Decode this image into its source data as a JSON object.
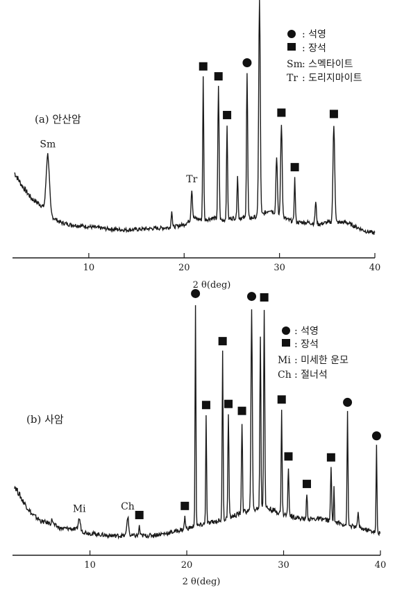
{
  "chart_data": [
    {
      "type": "line",
      "panel_label": "(a) 안산암",
      "xlabel": "2 θ(deg)",
      "xlim": [
        2,
        40
      ],
      "x_ticks": [
        10,
        20,
        30,
        40
      ],
      "y_axis_shown": false,
      "grid": false,
      "legend": {
        "placement": "top-right",
        "entries": [
          {
            "symbol": "circle",
            "label": ": 석영"
          },
          {
            "symbol": "square",
            "label": ": 장석"
          },
          {
            "symbol": "Sm",
            "label": ": 스멕타이트"
          },
          {
            "symbol": "Tr",
            "label": ": 도리지마이트"
          }
        ]
      },
      "baseline": [
        [
          2.2,
          0.33
        ],
        [
          3,
          0.27
        ],
        [
          4,
          0.21
        ],
        [
          5,
          0.18
        ],
        [
          6,
          0.13
        ],
        [
          7,
          0.1
        ],
        [
          8,
          0.09
        ],
        [
          10,
          0.08
        ],
        [
          12,
          0.07
        ],
        [
          14,
          0.065
        ],
        [
          16,
          0.07
        ],
        [
          18,
          0.075
        ],
        [
          19,
          0.08
        ],
        [
          20,
          0.09
        ],
        [
          21,
          0.12
        ],
        [
          22,
          0.11
        ],
        [
          23,
          0.12
        ],
        [
          24,
          0.11
        ],
        [
          25,
          0.12
        ],
        [
          26,
          0.12
        ],
        [
          27,
          0.12
        ],
        [
          28,
          0.13
        ],
        [
          29,
          0.16
        ],
        [
          30,
          0.13
        ],
        [
          31,
          0.11
        ],
        [
          32,
          0.1
        ],
        [
          33,
          0.1
        ],
        [
          34,
          0.09
        ],
        [
          35,
          0.1
        ],
        [
          36,
          0.1
        ],
        [
          37,
          0.1
        ],
        [
          38,
          0.08
        ],
        [
          39,
          0.06
        ],
        [
          40,
          0.05
        ]
      ],
      "peaks": [
        {
          "x": 5.7,
          "height": 0.27,
          "width": 0.45,
          "marker": "text",
          "label": "Sm"
        },
        {
          "x": 18.7,
          "height": 0.08,
          "width": 0.15,
          "marker": "none"
        },
        {
          "x": 20.8,
          "height": 0.14,
          "width": 0.2,
          "marker": "text",
          "label": "Tr"
        },
        {
          "x": 22.0,
          "height": 0.66,
          "width": 0.15,
          "marker": "square"
        },
        {
          "x": 23.6,
          "height": 0.61,
          "width": 0.18,
          "marker": "square"
        },
        {
          "x": 24.5,
          "height": 0.43,
          "width": 0.15,
          "marker": "square"
        },
        {
          "x": 25.6,
          "height": 0.2,
          "width": 0.15,
          "marker": "none"
        },
        {
          "x": 26.6,
          "height": 0.67,
          "width": 0.17,
          "marker": "circle"
        },
        {
          "x": 27.9,
          "height": 1.0,
          "width": 0.22,
          "marker": "square"
        },
        {
          "x": 29.7,
          "height": 0.27,
          "width": 0.2,
          "marker": "none"
        },
        {
          "x": 30.2,
          "height": 0.43,
          "width": 0.22,
          "marker": "square"
        },
        {
          "x": 31.6,
          "height": 0.2,
          "width": 0.15,
          "marker": "square"
        },
        {
          "x": 33.8,
          "height": 0.1,
          "width": 0.2,
          "marker": "none"
        },
        {
          "x": 35.7,
          "height": 0.45,
          "width": 0.25,
          "marker": "square"
        }
      ]
    },
    {
      "type": "line",
      "panel_label": "(b) 사암",
      "xlabel": "2 θ(deg)",
      "xlim": [
        2,
        40
      ],
      "x_ticks": [
        10,
        20,
        30,
        40
      ],
      "y_axis_shown": false,
      "grid": false,
      "legend": {
        "placement": "top-right",
        "entries": [
          {
            "symbol": "circle",
            "label": ": 석영"
          },
          {
            "symbol": "square",
            "label": ": 장석"
          },
          {
            "symbol": "Mi",
            "label": ": 미세한 운모"
          },
          {
            "symbol": "Ch",
            "label": ": 절너석"
          }
        ]
      },
      "baseline": [
        [
          2.2,
          0.26
        ],
        [
          3,
          0.2
        ],
        [
          4,
          0.14
        ],
        [
          5,
          0.11
        ],
        [
          6,
          0.1
        ],
        [
          7,
          0.08
        ],
        [
          8,
          0.08
        ],
        [
          9,
          0.07
        ],
        [
          10,
          0.06
        ],
        [
          12,
          0.05
        ],
        [
          14,
          0.05
        ],
        [
          16,
          0.05
        ],
        [
          18,
          0.06
        ],
        [
          20,
          0.08
        ],
        [
          22,
          0.1
        ],
        [
          24,
          0.12
        ],
        [
          26,
          0.15
        ],
        [
          28,
          0.17
        ],
        [
          30,
          0.14
        ],
        [
          32,
          0.12
        ],
        [
          34,
          0.12
        ],
        [
          36,
          0.1
        ],
        [
          38,
          0.08
        ],
        [
          40,
          0.06
        ]
      ],
      "peaks": [
        {
          "x": 6.1,
          "height": 0.02,
          "width": 0.2,
          "marker": "none"
        },
        {
          "x": 8.9,
          "height": 0.05,
          "width": 0.3,
          "marker": "text",
          "label": "Mi"
        },
        {
          "x": 13.9,
          "height": 0.08,
          "width": 0.25,
          "marker": "text",
          "label": "Ch"
        },
        {
          "x": 15.1,
          "height": 0.04,
          "width": 0.15,
          "marker": "square"
        },
        {
          "x": 19.8,
          "height": 0.05,
          "width": 0.15,
          "marker": "square"
        },
        {
          "x": 20.9,
          "height": 0.93,
          "width": 0.12,
          "marker": "circle"
        },
        {
          "x": 22.0,
          "height": 0.45,
          "width": 0.13,
          "marker": "square"
        },
        {
          "x": 23.7,
          "height": 0.7,
          "width": 0.13,
          "marker": "square"
        },
        {
          "x": 24.3,
          "height": 0.43,
          "width": 0.15,
          "marker": "square"
        },
        {
          "x": 25.7,
          "height": 0.38,
          "width": 0.15,
          "marker": "square"
        },
        {
          "x": 26.7,
          "height": 0.85,
          "width": 0.18,
          "marker": "circle"
        },
        {
          "x": 27.6,
          "height": 0.71,
          "width": 0.15,
          "marker": "none"
        },
        {
          "x": 28.0,
          "height": 0.83,
          "width": 0.15,
          "marker": "square"
        },
        {
          "x": 29.8,
          "height": 0.43,
          "width": 0.13,
          "marker": "square"
        },
        {
          "x": 30.5,
          "height": 0.2,
          "width": 0.15,
          "marker": "square"
        },
        {
          "x": 32.4,
          "height": 0.1,
          "width": 0.15,
          "marker": "square"
        },
        {
          "x": 34.9,
          "height": 0.22,
          "width": 0.15,
          "marker": "square"
        },
        {
          "x": 35.2,
          "height": 0.14,
          "width": 0.12,
          "marker": "none"
        },
        {
          "x": 36.6,
          "height": 0.47,
          "width": 0.13,
          "marker": "circle"
        },
        {
          "x": 37.7,
          "height": 0.07,
          "width": 0.15,
          "marker": "none"
        },
        {
          "x": 39.6,
          "height": 0.36,
          "width": 0.12,
          "marker": "circle"
        }
      ]
    }
  ]
}
